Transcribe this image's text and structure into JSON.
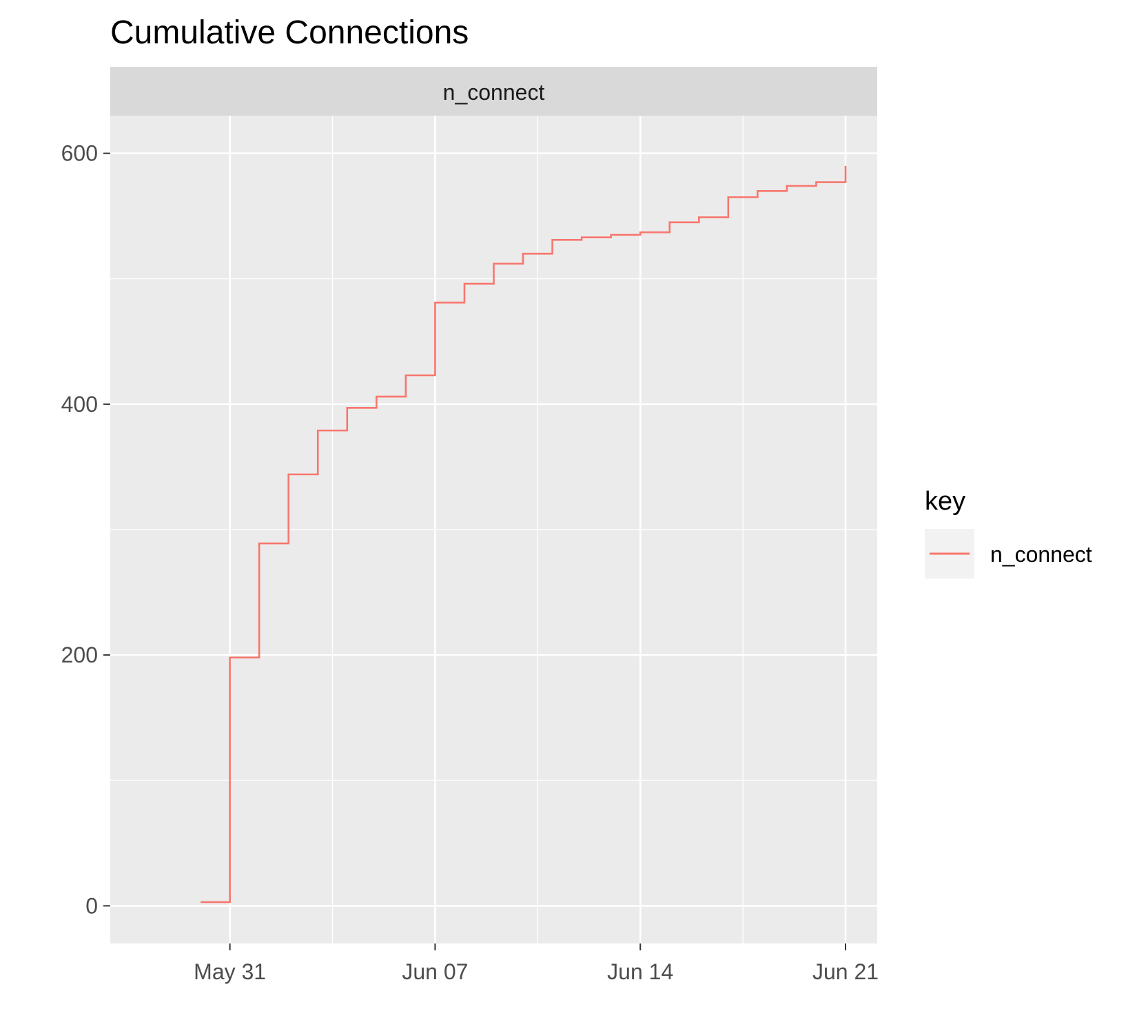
{
  "chart_data": {
    "type": "line",
    "step": true,
    "title": "Cumulative Connections",
    "facet": "n_connect",
    "xlabel": "",
    "ylabel": "",
    "xlim": [
      "2020-05-28",
      "2020-06-21"
    ],
    "ylim": [
      -30,
      630
    ],
    "x_ticks": [
      {
        "date": "2020-05-31",
        "label": "May 31"
      },
      {
        "date": "2020-06-07",
        "label": "Jun 07"
      },
      {
        "date": "2020-06-14",
        "label": "Jun 14"
      },
      {
        "date": "2020-06-21",
        "label": "Jun 21"
      }
    ],
    "y_ticks": [
      0,
      200,
      400,
      600
    ],
    "grid": true,
    "legend": {
      "title": "key",
      "position": "right"
    },
    "series": [
      {
        "name": "n_connect",
        "color": "#F8766D",
        "points": [
          {
            "x": "2020-05-30",
            "y": 3
          },
          {
            "x": "2020-05-31",
            "y": 198
          },
          {
            "x": "2020-06-01",
            "y": 289
          },
          {
            "x": "2020-06-02",
            "y": 344
          },
          {
            "x": "2020-06-03",
            "y": 379
          },
          {
            "x": "2020-06-04",
            "y": 397
          },
          {
            "x": "2020-06-05",
            "y": 406
          },
          {
            "x": "2020-06-06",
            "y": 423
          },
          {
            "x": "2020-06-07",
            "y": 481
          },
          {
            "x": "2020-06-08",
            "y": 496
          },
          {
            "x": "2020-06-09",
            "y": 512
          },
          {
            "x": "2020-06-10",
            "y": 520
          },
          {
            "x": "2020-06-11",
            "y": 531
          },
          {
            "x": "2020-06-12",
            "y": 533
          },
          {
            "x": "2020-06-13",
            "y": 535
          },
          {
            "x": "2020-06-14",
            "y": 537
          },
          {
            "x": "2020-06-15",
            "y": 545
          },
          {
            "x": "2020-06-16",
            "y": 549
          },
          {
            "x": "2020-06-17",
            "y": 565
          },
          {
            "x": "2020-06-18",
            "y": 570
          },
          {
            "x": "2020-06-19",
            "y": 574
          },
          {
            "x": "2020-06-20",
            "y": 577
          },
          {
            "x": "2020-06-21",
            "y": 583
          },
          {
            "x": "2020-06-21",
            "y": 590
          }
        ]
      }
    ]
  }
}
